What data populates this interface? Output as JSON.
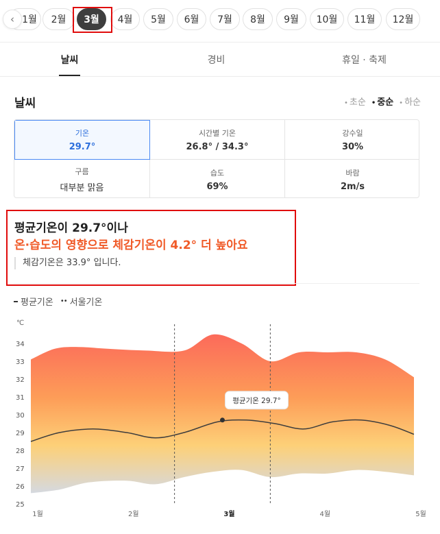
{
  "month_bar": {
    "prev_icon": "chevron-left-icon",
    "partial_month": "1월",
    "months": [
      "2월",
      "3월",
      "4월",
      "5월",
      "6월",
      "7월",
      "8월",
      "9월",
      "10월",
      "11월",
      "12월"
    ],
    "active_month": "3월"
  },
  "tabs": [
    "날씨",
    "경비",
    "휴일 · 축제"
  ],
  "weather": {
    "title": "날씨",
    "seasons": [
      {
        "label": "초순",
        "active": false
      },
      {
        "label": "중순",
        "active": true
      },
      {
        "label": "하순",
        "active": false
      }
    ],
    "stats": [
      {
        "label": "기온",
        "value": "29.7°"
      },
      {
        "label": "시간별 기온",
        "value": "26.8° / 34.3°"
      },
      {
        "label": "강수일",
        "value": "30%"
      },
      {
        "label": "구름",
        "value": "대부분 맑음"
      },
      {
        "label": "습도",
        "value": "69%"
      },
      {
        "label": "바람",
        "value": "2m/s"
      }
    ]
  },
  "highlight": {
    "line1": "평균기온이 29.7°이나",
    "line2": "온·습도의 영향으로 체감기온이 4.2° 더 높아요",
    "note": "체감기온은 33.9° 입니다."
  },
  "legend": [
    "평균기온",
    "서울기온"
  ],
  "colors": {
    "accent": "#2d6fdc",
    "warm": "#f05a28",
    "highlight_box": "#e00b0b",
    "active_pill": "#3e3e3e"
  },
  "chart_data": {
    "type": "area",
    "ylabel": "℃",
    "yticks": [
      25,
      26,
      27,
      28,
      29,
      30,
      31,
      32,
      33,
      34
    ],
    "ylim": [
      25,
      35
    ],
    "xlim": [
      1,
      5
    ],
    "x_tick_labels": [
      {
        "x": 1,
        "label": "1월"
      },
      {
        "x": 2,
        "label": "2월"
      },
      {
        "x": 3,
        "label": "3월"
      },
      {
        "x": 4,
        "label": "4월"
      },
      {
        "x": 5,
        "label": "5월"
      }
    ],
    "current_month_x": 3,
    "period_dividers_x": [
      2.5,
      3.5
    ],
    "range_upper": {
      "x": [
        1,
        1.25,
        1.5,
        1.8,
        2.2,
        2.6,
        2.9,
        3.2,
        3.5,
        3.8,
        4.1,
        4.4,
        4.7,
        5
      ],
      "y": [
        33.1,
        33.7,
        33.8,
        33.7,
        33.6,
        33.6,
        34.5,
        34.0,
        33.0,
        33.5,
        33.5,
        33.5,
        33.1,
        32.1
      ]
    },
    "range_lower": {
      "x": [
        1,
        1.3,
        1.6,
        2.0,
        2.3,
        2.6,
        2.9,
        3.2,
        3.5,
        3.8,
        4.1,
        4.4,
        4.7,
        5
      ],
      "y": [
        25.6,
        25.8,
        26.2,
        26.3,
        26.1,
        26.5,
        26.8,
        26.9,
        26.5,
        26.7,
        26.7,
        26.9,
        26.8,
        26.6
      ]
    },
    "series": [
      {
        "name": "평균기온",
        "x": [
          1,
          1.3,
          1.65,
          2.0,
          2.3,
          2.6,
          2.95,
          3.25,
          3.55,
          3.85,
          4.15,
          4.45,
          4.75,
          5
        ],
        "y": [
          28.5,
          29.0,
          29.2,
          29.0,
          28.7,
          29.0,
          29.6,
          29.7,
          29.5,
          29.2,
          29.6,
          29.7,
          29.4,
          28.9
        ]
      }
    ],
    "tooltip": {
      "label": "평균기온 29.7°",
      "x": 3,
      "y": 29.7
    }
  }
}
